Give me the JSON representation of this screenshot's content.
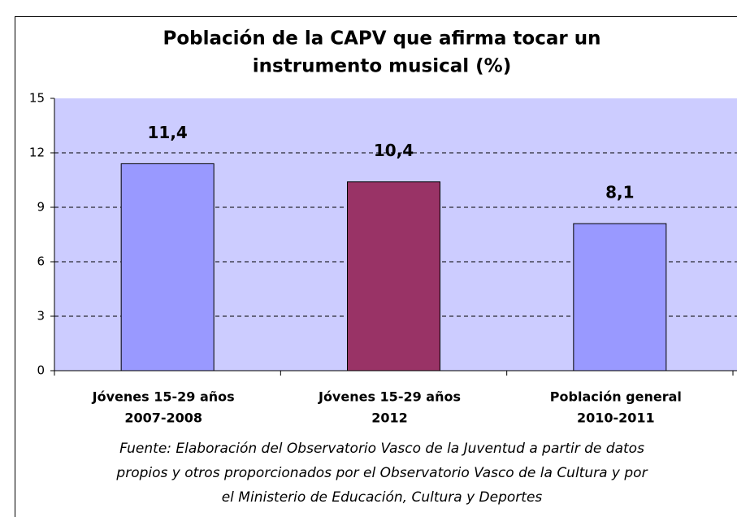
{
  "chart_data": {
    "type": "bar",
    "title": [
      "Población de la CAPV que afirma tocar un",
      "instrumento musical (%)"
    ],
    "categories": [
      [
        "Jóvenes 15-29 años",
        "2007-2008"
      ],
      [
        "Jóvenes 15-29 años",
        "2012"
      ],
      [
        "Población general",
        "2010-2011"
      ]
    ],
    "values": [
      11.4,
      10.4,
      8.1
    ],
    "value_labels": [
      "11,4",
      "10,4",
      "8,1"
    ],
    "colors": [
      "#9999ff",
      "#993366",
      "#9999ff"
    ],
    "ylim": [
      0,
      15
    ],
    "yticks": [
      0,
      3,
      6,
      9,
      12,
      15
    ],
    "grid": true,
    "note": [
      "Fuente: Elaboración del Observatorio Vasco de la Juventud  a partir de datos",
      "propios y otros proporcionados por el Observatorio Vasco de la Cultura y por",
      "el Ministerio de Educación, Cultura y Deportes"
    ]
  }
}
